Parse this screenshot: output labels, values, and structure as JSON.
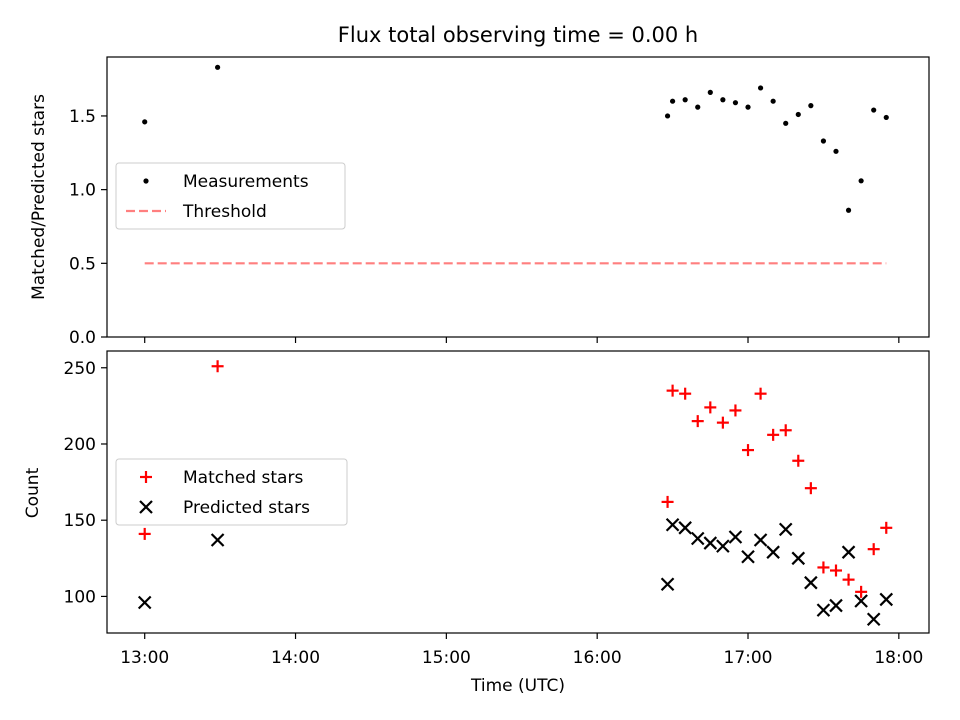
{
  "chart_data": [
    {
      "type": "scatter",
      "title": "Flux total observing time = 0.00 h",
      "xlabel": "",
      "ylabel": "Matched/Predicted stars",
      "ylim": [
        0,
        1.9
      ],
      "yticks": [
        "0.0",
        "0.5",
        "1.0",
        "1.5"
      ],
      "ytick_values": [
        0,
        0.5,
        1.0,
        1.5
      ],
      "legend_position": "center-left",
      "colors": {
        "measurements": "#000000",
        "threshold": "#ff7f7f"
      },
      "series": [
        {
          "name": "Measurements",
          "marker": "dot",
          "x": [
            "13:00",
            "13:29",
            "16:28",
            "16:30",
            "16:35",
            "16:40",
            "16:45",
            "16:50",
            "16:55",
            "17:00",
            "17:05",
            "17:10",
            "17:15",
            "17:20",
            "17:25",
            "17:30",
            "17:35",
            "17:40",
            "17:45",
            "17:50",
            "17:55"
          ],
          "y": [
            1.46,
            1.83,
            1.5,
            1.6,
            1.61,
            1.56,
            1.66,
            1.61,
            1.59,
            1.56,
            1.69,
            1.6,
            1.45,
            1.51,
            1.57,
            1.33,
            1.26,
            0.86,
            1.06,
            1.54,
            1.49
          ]
        },
        {
          "name": "Threshold",
          "marker": "dashed-line",
          "x": [
            "13:00",
            "17:55"
          ],
          "y": [
            0.5,
            0.5
          ]
        }
      ]
    },
    {
      "type": "scatter",
      "title": "",
      "xlabel": "Time (UTC)",
      "ylabel": "Count",
      "ylim": [
        76,
        261
      ],
      "yticks": [
        "100",
        "150",
        "200",
        "250"
      ],
      "ytick_values": [
        100,
        150,
        200,
        250
      ],
      "xlim": [
        "12:45",
        "18:12"
      ],
      "xticks": [
        "13:00",
        "14:00",
        "15:00",
        "16:00",
        "17:00",
        "18:00"
      ],
      "legend_position": "center-left",
      "colors": {
        "matched": "#ff0000",
        "predicted": "#000000"
      },
      "series": [
        {
          "name": "Matched stars",
          "marker": "plus",
          "x": [
            "13:00",
            "13:29",
            "16:28",
            "16:30",
            "16:35",
            "16:40",
            "16:45",
            "16:50",
            "16:55",
            "17:00",
            "17:05",
            "17:10",
            "17:15",
            "17:20",
            "17:25",
            "17:30",
            "17:35",
            "17:40",
            "17:45",
            "17:50",
            "17:55"
          ],
          "y": [
            141,
            251,
            162,
            235,
            233,
            215,
            224,
            214,
            222,
            196,
            233,
            206,
            209,
            189,
            171,
            119,
            117,
            111,
            103,
            131,
            145
          ]
        },
        {
          "name": "Predicted stars",
          "marker": "x",
          "x": [
            "13:00",
            "13:29",
            "16:28",
            "16:30",
            "16:35",
            "16:40",
            "16:45",
            "16:50",
            "16:55",
            "17:00",
            "17:05",
            "17:10",
            "17:15",
            "17:20",
            "17:25",
            "17:30",
            "17:35",
            "17:40",
            "17:45",
            "17:50",
            "17:55"
          ],
          "y": [
            96,
            137,
            108,
            147,
            145,
            138,
            135,
            133,
            139,
            126,
            137,
            129,
            144,
            125,
            109,
            91,
            94,
            129,
            97,
            85,
            98
          ]
        }
      ]
    }
  ]
}
